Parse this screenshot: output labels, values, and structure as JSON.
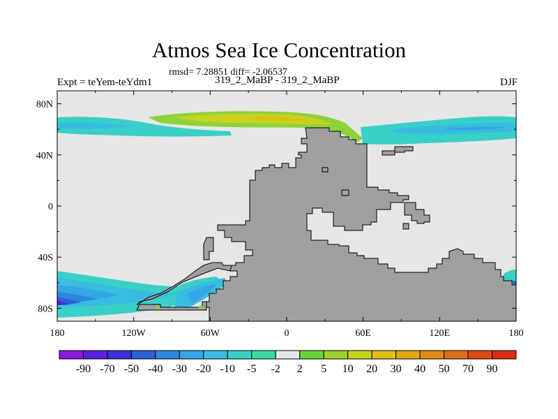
{
  "title": "Atmos Sea Ice Concentration",
  "stats": "rmsd= 7.28851 diff= -2.06537",
  "subtitle": "319_2_MaBP - 319_2_MaBP",
  "expt": "Expt = teYem-teYdm1",
  "season": "DJF",
  "lat_labels": [
    "80N",
    "40N",
    "0",
    "40S",
    "80S"
  ],
  "lat_values": [
    80,
    40,
    0,
    -40,
    -80
  ],
  "lon_labels": [
    "180",
    "120W",
    "60W",
    "0",
    "60E",
    "120E",
    "180"
  ],
  "lon_values": [
    -180,
    -120,
    -60,
    0,
    60,
    120,
    180
  ],
  "colorbar": {
    "labels": [
      "-90",
      "-70",
      "-50",
      "-40",
      "-30",
      "-20",
      "-10",
      "-5",
      "-2",
      "2",
      "5",
      "10",
      "20",
      "30",
      "40",
      "50",
      "70",
      "90"
    ],
    "colors": [
      "#8a1ad8",
      "#5a1fe0",
      "#3a32dc",
      "#2b5fd8",
      "#2f86e0",
      "#34a6e6",
      "#38bde0",
      "#3ad0c8",
      "#3ad8a8",
      "#e6e6e6",
      "#6cd23c",
      "#9ed22a",
      "#c8d21e",
      "#dcc014",
      "#e0a810",
      "#e08c10",
      "#e06e14",
      "#e04a14",
      "#e02a12"
    ]
  },
  "colors": {
    "land": "#a0a0a0",
    "ocean_neutral": "#e6e6e6"
  }
}
